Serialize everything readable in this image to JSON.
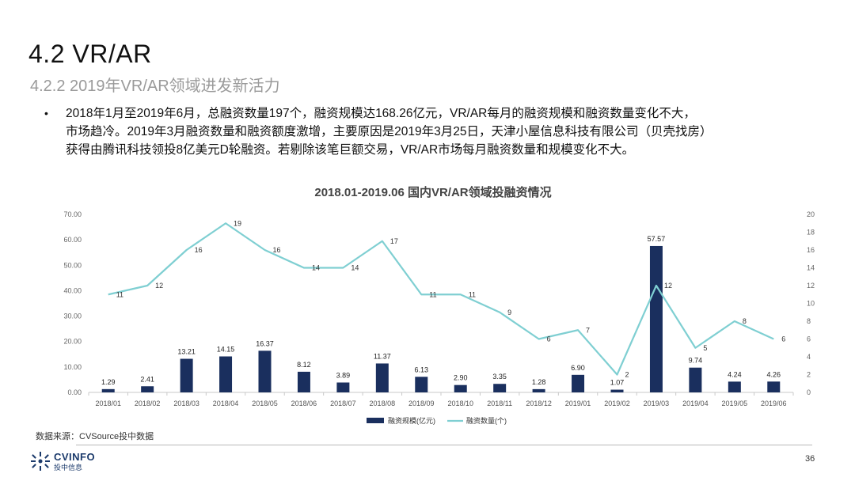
{
  "header": {
    "title": "4.2 VR/AR",
    "subtitle": "4.2.2 2019年VR/AR领域进发新活力"
  },
  "bullet": {
    "symbol": "•",
    "lines": [
      "2018年1月至2019年6月，总融资数量197个，融资规模达168.26亿元，VR/AR每月的融资规模和融资数量变化不大，",
      "市场趋冷。2019年3月融资数量和融资额度激增，主要原因是2019年3月25日，天津小屋信息科技有限公司（贝壳找房）",
      "获得由腾讯科技领投8亿美元D轮融资。若剔除该笔巨额交易，VR/AR市场每月融资数量和规模变化不大。"
    ]
  },
  "chart_data": {
    "type": "bar",
    "title": "2018.01-2019.06 国内VR/AR领域投融资情况",
    "categories": [
      "2018/01",
      "2018/02",
      "2018/03",
      "2018/04",
      "2018/05",
      "2018/06",
      "2018/07",
      "2018/08",
      "2018/09",
      "2018/10",
      "2018/11",
      "2018/12",
      "2019/01",
      "2019/02",
      "2019/03",
      "2019/04",
      "2019/05",
      "2019/06"
    ],
    "series": [
      {
        "name": "融资规模(亿元)",
        "type": "bar",
        "axis": "left",
        "color": "#1a2f5e",
        "values": [
          1.29,
          2.41,
          13.21,
          14.15,
          16.37,
          8.12,
          3.89,
          11.37,
          6.13,
          2.9,
          3.35,
          1.28,
          6.9,
          1.07,
          57.57,
          9.74,
          4.24,
          4.26
        ],
        "labels": [
          "1.29",
          "2.41",
          "13.21",
          "14.15",
          "16.37",
          "8.12",
          "3.89",
          "11.37",
          "6.13",
          "2.90",
          "3.35",
          "1.28",
          "6.90",
          "1.07",
          "57.57",
          "9.74",
          "4.24",
          "4.26"
        ]
      },
      {
        "name": "融资数量(个)",
        "type": "line",
        "axis": "right",
        "color": "#7fcfd2",
        "values": [
          11,
          12,
          16,
          19,
          16,
          14,
          14,
          17,
          11,
          11,
          9,
          6,
          7,
          2,
          12,
          5,
          8,
          6
        ]
      }
    ],
    "left_axis": {
      "ylim": [
        0,
        70
      ],
      "ticks": [
        "0.00",
        "10.00",
        "20.00",
        "30.00",
        "40.00",
        "50.00",
        "60.00",
        "70.00"
      ]
    },
    "right_axis": {
      "ylim": [
        0,
        20
      ],
      "ticks": [
        "0",
        "2",
        "4",
        "6",
        "8",
        "10",
        "12",
        "14",
        "16",
        "18",
        "20"
      ]
    },
    "grid": false,
    "legend": "bottom"
  },
  "footer": {
    "source": "数据来源：CVSource投中数据",
    "logo_text": "CVINFO",
    "logo_sub": "投中信息",
    "page_number": "36"
  }
}
